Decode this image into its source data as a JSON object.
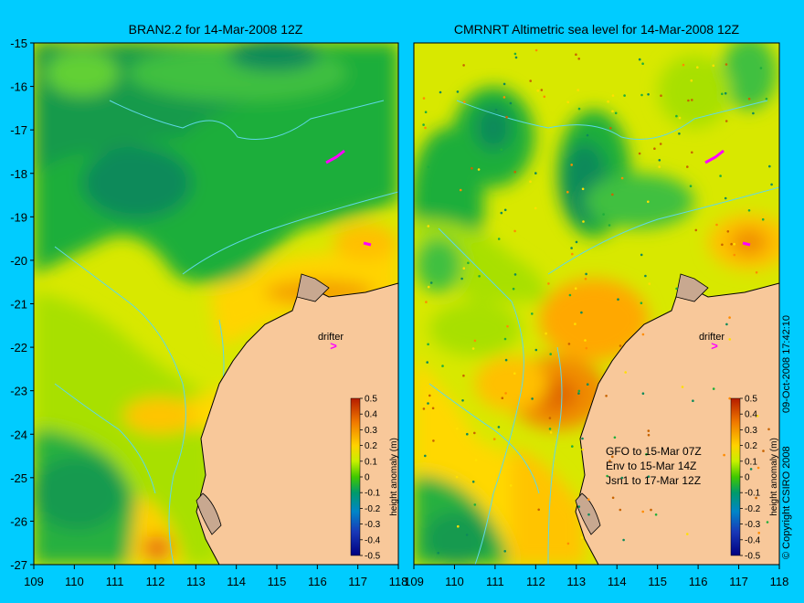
{
  "background_color": "#00ccff",
  "land_color": "#f8c89a",
  "coast_color": "#5fd8e8",
  "panels": [
    {
      "title": "BRAN2.2 for 14-Mar-2008 12Z",
      "drifter_label": "drifter",
      "notes": []
    },
    {
      "title": "CMRNRT Altimetric sea level  for 14-Mar-2008 12Z",
      "drifter_label": "drifter",
      "notes": [
        "GFO to 15-Mar 07Z",
        "Env to 15-Mar 14Z",
        "Jsn1 to 17-Mar 12Z"
      ]
    }
  ],
  "y_axis_ticks": [
    "-15",
    "-16",
    "-17",
    "-18",
    "-19",
    "-20",
    "-21",
    "-22",
    "-23",
    "-24",
    "-25",
    "-26",
    "-27"
  ],
  "x_axis_ticks": [
    "109",
    "110",
    "111",
    "112",
    "113",
    "114",
    "115",
    "116",
    "117",
    "118"
  ],
  "colorbar": {
    "label": "height anomaly (m)",
    "ticks": [
      "0.5",
      "0.4",
      "0.3",
      "0.2",
      "0.1",
      "0",
      "-0.1",
      "-0.2",
      "-0.3",
      "-0.4",
      "-0.5"
    ]
  },
  "copyright": "© Copyright CSIRO 2008",
  "timestamp": "09-Oct-2008 17:42:10"
}
